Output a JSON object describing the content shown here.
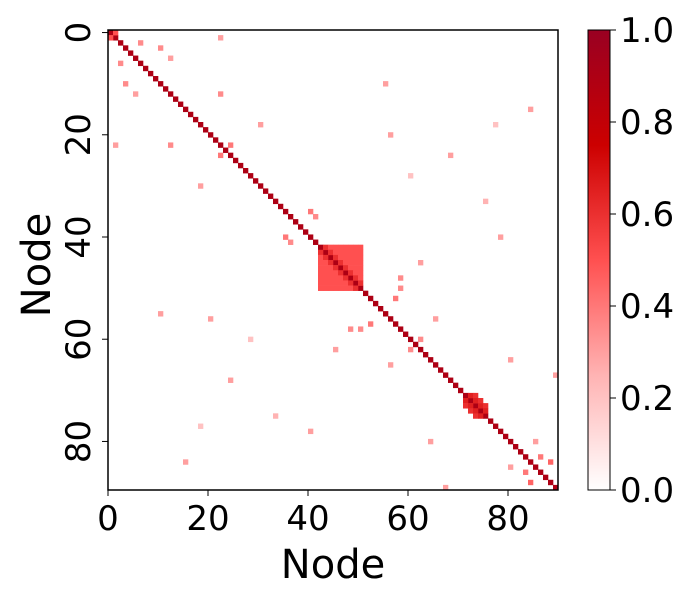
{
  "chart_data": {
    "type": "heatmap",
    "x_label": "Node",
    "y_label": "Node",
    "xlim": [
      0,
      90
    ],
    "ylim": [
      90,
      0
    ],
    "xticks": [
      0,
      20,
      40,
      60,
      80
    ],
    "yticks": [
      0,
      20,
      40,
      60,
      80
    ],
    "clim": [
      0,
      1
    ],
    "colorbar_ticks": [
      {
        "value": 0,
        "label": "0.0"
      },
      {
        "value": 0.2,
        "label": "0.2"
      },
      {
        "value": 0.4,
        "label": "0.4"
      },
      {
        "value": 0.6,
        "label": "0.6"
      },
      {
        "value": 0.8,
        "label": "0.8"
      },
      {
        "value": 1,
        "label": "1.0"
      }
    ],
    "colors": [
      "#ffffff",
      "#ffb3b3",
      "#ff5050",
      "#cc0000",
      "#990022"
    ],
    "cells": [
      [
        0,
        0,
        0.9
      ],
      [
        1,
        1,
        0.9
      ],
      [
        2,
        2,
        0.9
      ],
      [
        3,
        3,
        0.9
      ],
      [
        4,
        4,
        0.9
      ],
      [
        5,
        5,
        0.9
      ],
      [
        6,
        6,
        0.9
      ],
      [
        7,
        7,
        0.9
      ],
      [
        8,
        8,
        0.9
      ],
      [
        9,
        9,
        0.9
      ],
      [
        10,
        10,
        0.9
      ],
      [
        11,
        11,
        0.9
      ],
      [
        12,
        12,
        0.9
      ],
      [
        13,
        13,
        0.9
      ],
      [
        14,
        14,
        0.9
      ],
      [
        15,
        15,
        0.9
      ],
      [
        16,
        16,
        0.9
      ],
      [
        17,
        17,
        0.9
      ],
      [
        18,
        18,
        0.9
      ],
      [
        19,
        19,
        0.9
      ],
      [
        20,
        20,
        0.9
      ],
      [
        21,
        21,
        0.9
      ],
      [
        22,
        22,
        0.9
      ],
      [
        23,
        23,
        0.9
      ],
      [
        24,
        24,
        0.9
      ],
      [
        25,
        25,
        0.9
      ],
      [
        26,
        26,
        0.9
      ],
      [
        27,
        27,
        0.9
      ],
      [
        28,
        28,
        0.9
      ],
      [
        29,
        29,
        0.9
      ],
      [
        30,
        30,
        0.9
      ],
      [
        31,
        31,
        0.9
      ],
      [
        32,
        32,
        0.9
      ],
      [
        33,
        33,
        0.9
      ],
      [
        34,
        34,
        0.9
      ],
      [
        35,
        35,
        0.9
      ],
      [
        36,
        36,
        0.9
      ],
      [
        37,
        37,
        0.9
      ],
      [
        38,
        38,
        0.9
      ],
      [
        39,
        39,
        0.9
      ],
      [
        40,
        40,
        0.9
      ],
      [
        41,
        41,
        0.9
      ],
      [
        42,
        42,
        0.9
      ],
      [
        43,
        43,
        0.9
      ],
      [
        44,
        44,
        0.9
      ],
      [
        45,
        45,
        0.9
      ],
      [
        46,
        46,
        0.9
      ],
      [
        47,
        47,
        0.9
      ],
      [
        48,
        48,
        0.9
      ],
      [
        49,
        49,
        0.9
      ],
      [
        50,
        50,
        0.9
      ],
      [
        51,
        51,
        0.9
      ],
      [
        52,
        52,
        0.9
      ],
      [
        53,
        53,
        0.9
      ],
      [
        54,
        54,
        0.9
      ],
      [
        55,
        55,
        0.9
      ],
      [
        56,
        56,
        0.9
      ],
      [
        57,
        57,
        0.9
      ],
      [
        58,
        58,
        0.9
      ],
      [
        59,
        59,
        0.9
      ],
      [
        60,
        60,
        0.9
      ],
      [
        61,
        61,
        0.9
      ],
      [
        62,
        62,
        0.9
      ],
      [
        63,
        63,
        0.9
      ],
      [
        64,
        64,
        0.9
      ],
      [
        65,
        65,
        0.9
      ],
      [
        66,
        66,
        0.9
      ],
      [
        67,
        67,
        0.9
      ],
      [
        68,
        68,
        0.9
      ],
      [
        69,
        69,
        0.9
      ],
      [
        70,
        70,
        0.9
      ],
      [
        71,
        71,
        0.9
      ],
      [
        72,
        72,
        0.9
      ],
      [
        73,
        73,
        0.9
      ],
      [
        74,
        74,
        0.9
      ],
      [
        75,
        75,
        0.9
      ],
      [
        76,
        76,
        0.9
      ],
      [
        77,
        77,
        0.9
      ],
      [
        78,
        78,
        0.9
      ],
      [
        79,
        79,
        0.9
      ],
      [
        80,
        80,
        0.9
      ],
      [
        81,
        81,
        0.9
      ],
      [
        82,
        82,
        0.9
      ],
      [
        83,
        83,
        0.9
      ],
      [
        84,
        84,
        0.9
      ],
      [
        85,
        85,
        0.9
      ],
      [
        86,
        86,
        0.9
      ],
      [
        87,
        87,
        0.9
      ],
      [
        88,
        88,
        0.9
      ],
      [
        89,
        89,
        0.9
      ],
      [
        42,
        43,
        0.6
      ],
      [
        43,
        42,
        0.6
      ],
      [
        42,
        44,
        0.5
      ],
      [
        44,
        42,
        0.5
      ],
      [
        42,
        45,
        0.5
      ],
      [
        45,
        42,
        0.5
      ],
      [
        42,
        46,
        0.5
      ],
      [
        46,
        42,
        0.5
      ],
      [
        42,
        47,
        0.5
      ],
      [
        47,
        42,
        0.5
      ],
      [
        42,
        48,
        0.5
      ],
      [
        48,
        42,
        0.5
      ],
      [
        42,
        49,
        0.5
      ],
      [
        49,
        42,
        0.5
      ],
      [
        42,
        50,
        0.5
      ],
      [
        50,
        42,
        0.5
      ],
      [
        43,
        44,
        0.6
      ],
      [
        44,
        43,
        0.6
      ],
      [
        43,
        45,
        0.5
      ],
      [
        45,
        43,
        0.5
      ],
      [
        43,
        46,
        0.5
      ],
      [
        46,
        43,
        0.5
      ],
      [
        43,
        47,
        0.5
      ],
      [
        47,
        43,
        0.5
      ],
      [
        43,
        48,
        0.5
      ],
      [
        48,
        43,
        0.5
      ],
      [
        43,
        49,
        0.5
      ],
      [
        49,
        43,
        0.5
      ],
      [
        43,
        50,
        0.5
      ],
      [
        50,
        43,
        0.5
      ],
      [
        44,
        45,
        0.6
      ],
      [
        45,
        44,
        0.6
      ],
      [
        44,
        46,
        0.5
      ],
      [
        46,
        44,
        0.5
      ],
      [
        44,
        47,
        0.5
      ],
      [
        47,
        44,
        0.5
      ],
      [
        44,
        48,
        0.5
      ],
      [
        48,
        44,
        0.5
      ],
      [
        44,
        49,
        0.5
      ],
      [
        49,
        44,
        0.5
      ],
      [
        44,
        50,
        0.5
      ],
      [
        50,
        44,
        0.5
      ],
      [
        45,
        46,
        0.6
      ],
      [
        46,
        45,
        0.6
      ],
      [
        45,
        47,
        0.5
      ],
      [
        47,
        45,
        0.5
      ],
      [
        45,
        48,
        0.5
      ],
      [
        48,
        45,
        0.5
      ],
      [
        45,
        49,
        0.5
      ],
      [
        49,
        45,
        0.5
      ],
      [
        45,
        50,
        0.5
      ],
      [
        50,
        45,
        0.5
      ],
      [
        46,
        47,
        0.6
      ],
      [
        47,
        46,
        0.6
      ],
      [
        46,
        48,
        0.5
      ],
      [
        48,
        46,
        0.5
      ],
      [
        46,
        49,
        0.5
      ],
      [
        49,
        46,
        0.5
      ],
      [
        46,
        50,
        0.5
      ],
      [
        50,
        46,
        0.5
      ],
      [
        47,
        48,
        0.6
      ],
      [
        48,
        47,
        0.6
      ],
      [
        47,
        49,
        0.5
      ],
      [
        49,
        47,
        0.5
      ],
      [
        47,
        50,
        0.5
      ],
      [
        50,
        47,
        0.5
      ],
      [
        48,
        49,
        0.6
      ],
      [
        49,
        48,
        0.6
      ],
      [
        48,
        50,
        0.5
      ],
      [
        50,
        48,
        0.5
      ],
      [
        49,
        50,
        0.6
      ],
      [
        50,
        49,
        0.6
      ],
      [
        71,
        72,
        0.65
      ],
      [
        72,
        71,
        0.65
      ],
      [
        71,
        73,
        0.6
      ],
      [
        73,
        71,
        0.6
      ],
      [
        72,
        73,
        0.65
      ],
      [
        73,
        72,
        0.65
      ],
      [
        72,
        74,
        0.6
      ],
      [
        74,
        72,
        0.6
      ],
      [
        73,
        74,
        0.65
      ],
      [
        74,
        73,
        0.65
      ],
      [
        73,
        75,
        0.6
      ],
      [
        75,
        73,
        0.6
      ],
      [
        74,
        75,
        0.65
      ],
      [
        75,
        74,
        0.65
      ],
      [
        0,
        1,
        0.5
      ],
      [
        1,
        0,
        0.5
      ],
      [
        2,
        6,
        0.35
      ],
      [
        6,
        2,
        0.35
      ],
      [
        3,
        10,
        0.35
      ],
      [
        10,
        3,
        0.35
      ],
      [
        5,
        12,
        0.3
      ],
      [
        12,
        5,
        0.3
      ],
      [
        1,
        22,
        0.3
      ],
      [
        22,
        1,
        0.3
      ],
      [
        12,
        22,
        0.35
      ],
      [
        22,
        12,
        0.35
      ],
      [
        22,
        24,
        0.4
      ],
      [
        24,
        22,
        0.4
      ],
      [
        18,
        30,
        0.3
      ],
      [
        30,
        18,
        0.3
      ],
      [
        35,
        40,
        0.4
      ],
      [
        40,
        35,
        0.4
      ],
      [
        36,
        41,
        0.35
      ],
      [
        41,
        36,
        0.35
      ],
      [
        40,
        78,
        0.3
      ],
      [
        78,
        40,
        0.3
      ],
      [
        20,
        56,
        0.3
      ],
      [
        56,
        20,
        0.3
      ],
      [
        24,
        68,
        0.3
      ],
      [
        68,
        24,
        0.3
      ],
      [
        33,
        75,
        0.25
      ],
      [
        75,
        33,
        0.25
      ],
      [
        56,
        65,
        0.3
      ],
      [
        65,
        56,
        0.3
      ],
      [
        60,
        62,
        0.35
      ],
      [
        62,
        60,
        0.35
      ],
      [
        50,
        58,
        0.35
      ],
      [
        58,
        50,
        0.35
      ],
      [
        52,
        57,
        0.4
      ],
      [
        57,
        52,
        0.4
      ],
      [
        64,
        80,
        0.3
      ],
      [
        80,
        64,
        0.3
      ],
      [
        83,
        86,
        0.4
      ],
      [
        86,
        83,
        0.4
      ],
      [
        84,
        88,
        0.45
      ],
      [
        88,
        84,
        0.45
      ],
      [
        10,
        55,
        0.3
      ],
      [
        55,
        10,
        0.3
      ],
      [
        28,
        60,
        0.2
      ],
      [
        60,
        28,
        0.2
      ],
      [
        15,
        84,
        0.3
      ],
      [
        84,
        15,
        0.3
      ],
      [
        67,
        89,
        0.3
      ],
      [
        89,
        67,
        0.3
      ],
      [
        80,
        85,
        0.3
      ],
      [
        85,
        80,
        0.3
      ],
      [
        18,
        77,
        0.2
      ],
      [
        77,
        18,
        0.2
      ],
      [
        45,
        62,
        0.3
      ],
      [
        62,
        45,
        0.3
      ],
      [
        48,
        58,
        0.35
      ],
      [
        58,
        48,
        0.35
      ]
    ]
  }
}
